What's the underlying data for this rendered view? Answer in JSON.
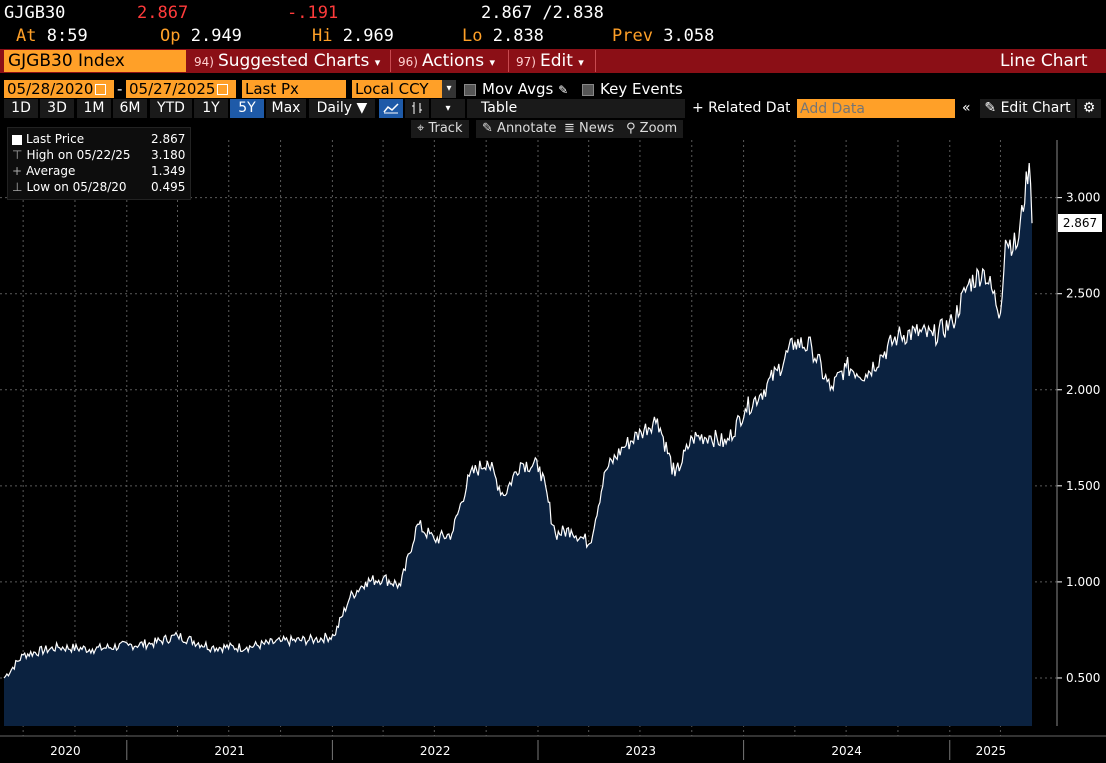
{
  "quote": {
    "ticker": "GJGB30",
    "last": "2.867",
    "change": "-.191",
    "bid_ask": "2.867 /2.838",
    "at_label": "At",
    "at_time": "8:59",
    "op_label": "Op",
    "op_value": "2.949",
    "hi_label": "Hi",
    "hi_value": "2.969",
    "lo_label": "Lo",
    "lo_value": "2.838",
    "prev_label": "Prev",
    "prev_value": "3.058"
  },
  "menu": {
    "security": "GJGB30 Index",
    "suggested_num": "94)",
    "suggested": "Suggested Charts",
    "actions_num": "96)",
    "actions": "Actions",
    "edit_num": "97)",
    "edit": "Edit",
    "chart_type": "Line Chart"
  },
  "controls": {
    "start_date": "05/28/2020",
    "dash": "-",
    "end_date": "05/27/2025",
    "field": "Last Px",
    "currency": "Local CCY",
    "mov_avgs": "Mov Avgs",
    "key_events": "Key Events",
    "periods": [
      "1D",
      "3D",
      "1M",
      "6M",
      "YTD",
      "1Y",
      "5Y",
      "Max"
    ],
    "selected_period": "5Y",
    "frequency": "Daily",
    "table": "Table",
    "related_data": "+ Related Data",
    "add_data_placeholder": "Add Data",
    "edit_chart": "Edit Chart"
  },
  "tools": {
    "track": "Track",
    "annotate": "Annotate",
    "news": "News",
    "zoom": "Zoom"
  },
  "legend": {
    "last_label": "Last Price",
    "last_value": "2.867",
    "high_label": "High on 05/22/25",
    "high_value": "3.180",
    "avg_label": "Average",
    "avg_value": "1.349",
    "low_label": "Low on 05/28/20",
    "low_value": "0.495"
  },
  "colors": {
    "accent_orange": "#ffa028",
    "menu_red": "#8b0f16",
    "area_fill": "#0b2240",
    "line": "#ffffff",
    "negative": "#ff3b3b"
  },
  "chart_data": {
    "type": "area",
    "series": [
      {
        "name": "Last Price",
        "x": [
          "2020-05-28",
          "2020-07-01",
          "2020-09-01",
          "2020-11-01",
          "2021-01-04",
          "2021-02-15",
          "2021-04-01",
          "2021-06-01",
          "2021-08-02",
          "2021-10-01",
          "2021-12-01",
          "2022-01-04",
          "2022-02-01",
          "2022-03-01",
          "2022-04-01",
          "2022-05-02",
          "2022-06-01",
          "2022-07-01",
          "2022-08-01",
          "2022-09-01",
          "2022-10-03",
          "2022-11-01",
          "2022-12-01",
          "2023-01-04",
          "2023-02-01",
          "2023-03-01",
          "2023-04-03",
          "2023-05-01",
          "2023-06-01",
          "2023-07-03",
          "2023-08-01",
          "2023-09-01",
          "2023-10-02",
          "2023-11-01",
          "2023-12-01",
          "2024-01-04",
          "2024-02-01",
          "2024-03-01",
          "2024-04-01",
          "2024-05-01",
          "2024-06-03",
          "2024-07-01",
          "2024-08-05",
          "2024-09-02",
          "2024-10-01",
          "2024-11-01",
          "2024-12-02",
          "2025-01-06",
          "2025-02-03",
          "2025-03-03",
          "2025-04-01",
          "2025-04-10",
          "2025-05-01",
          "2025-05-22",
          "2025-05-27"
        ],
        "values": [
          0.5,
          0.62,
          0.66,
          0.65,
          0.67,
          0.68,
          0.72,
          0.66,
          0.66,
          0.69,
          0.7,
          0.72,
          0.92,
          1.0,
          1.02,
          0.98,
          1.3,
          1.22,
          1.25,
          1.55,
          1.63,
          1.45,
          1.62,
          1.6,
          1.25,
          1.27,
          1.2,
          1.58,
          1.7,
          1.78,
          1.85,
          1.55,
          1.75,
          1.76,
          1.72,
          1.9,
          1.98,
          2.1,
          2.25,
          2.22,
          2.0,
          2.12,
          2.08,
          2.18,
          2.28,
          2.3,
          2.28,
          2.35,
          2.55,
          2.62,
          2.4,
          2.78,
          2.75,
          3.18,
          2.867
        ]
      }
    ],
    "ylim": [
      0.25,
      3.3
    ],
    "yticks": [
      "0.500",
      "1.000",
      "1.500",
      "2.000",
      "2.500",
      "3.000"
    ],
    "xticks": [
      "2020",
      "2021",
      "2022",
      "2023",
      "2024",
      "2025"
    ],
    "last_value_label": "2.867",
    "grid": true,
    "legend_position": "top-left"
  }
}
